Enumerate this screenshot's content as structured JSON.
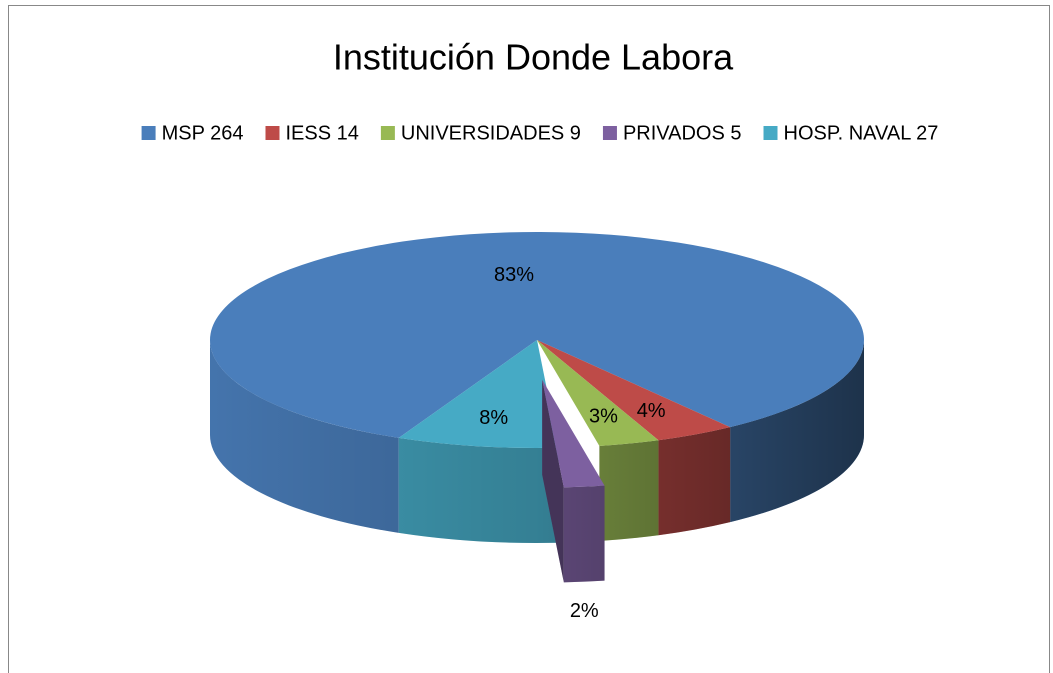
{
  "chart_data": {
    "type": "pie3d",
    "title": "Institución Donde Labora",
    "categories": [
      "MSP 264",
      "IESS 14",
      "UNIVERSIDADES 9",
      "PRIVADOS 5",
      "HOSP. NAVAL 27"
    ],
    "values": [
      83,
      4,
      3,
      2,
      8
    ],
    "value_labels": [
      "83%",
      "4%",
      "3%",
      "2%",
      "8%"
    ],
    "colors": [
      "#4a7ebb",
      "#be4b48",
      "#98b954",
      "#7d60a0",
      "#46aac5"
    ],
    "exploded": 3,
    "legend": "top"
  }
}
